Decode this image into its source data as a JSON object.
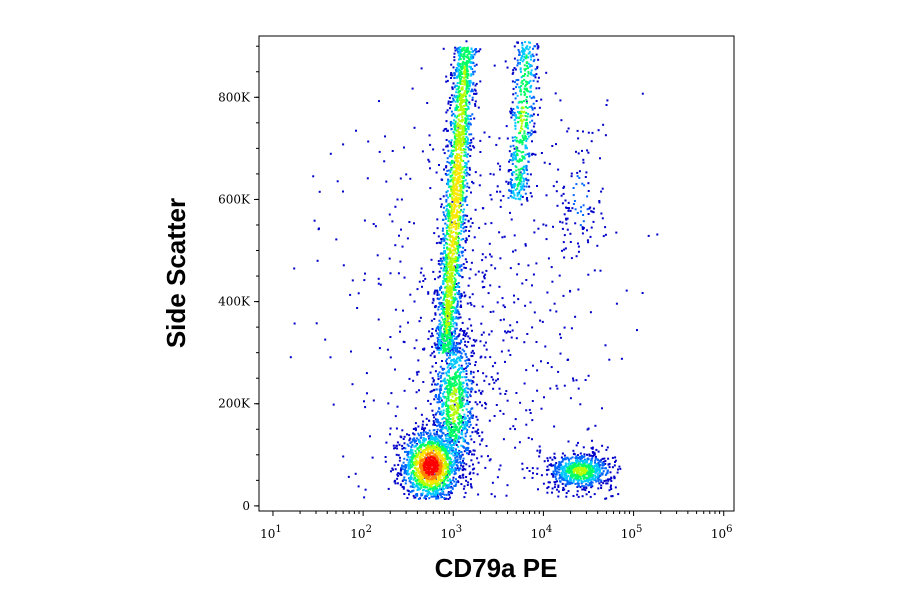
{
  "chart_data": {
    "type": "scatter",
    "xlabel": "CD79a PE",
    "ylabel": "Side Scatter",
    "x_scale": "log",
    "x_ticks": [
      {
        "value": 10,
        "base": "10",
        "exp": "1"
      },
      {
        "value": 100,
        "base": "10",
        "exp": "2"
      },
      {
        "value": 1000,
        "base": "10",
        "exp": "3"
      },
      {
        "value": 10000,
        "base": "10",
        "exp": "4"
      },
      {
        "value": 100000,
        "base": "10",
        "exp": "5"
      },
      {
        "value": 1000000,
        "base": "10",
        "exp": "6"
      }
    ],
    "y_ticks": [
      {
        "value": 0,
        "label": "0"
      },
      {
        "value": 200000,
        "label": "200K"
      },
      {
        "value": 400000,
        "label": "400K"
      },
      {
        "value": 600000,
        "label": "600K"
      },
      {
        "value": 800000,
        "label": "800K"
      }
    ],
    "xlim": [
      7,
      1300000
    ],
    "ylim": [
      -10000,
      920000
    ],
    "grid": false,
    "colormap": [
      "#0000c8",
      "#0064ff",
      "#00c8ff",
      "#00ff64",
      "#b4ff00",
      "#ffe600",
      "#ff8200",
      "#ff0000"
    ],
    "populations": [
      {
        "x_center": 550,
        "y_center": 80000,
        "x_spread_decades": 0.16,
        "y_spread": 35000,
        "count": 1400,
        "density": 1.0
      },
      {
        "x_center": 1000,
        "y_center": 200000,
        "x_spread_decades": 0.12,
        "y_spread": 80000,
        "count": 900,
        "density": 0.55
      },
      {
        "x_center": 900,
        "y_start": 300000,
        "y_end": 900000,
        "x_start": 800,
        "x_end": 1350,
        "x_spread_decades": 0.07,
        "count": 1900,
        "density": 0.6
      },
      {
        "x_center": 5500,
        "y_start": 600000,
        "y_end": 910000,
        "x_start": 5000,
        "x_end": 6500,
        "x_spread_decades": 0.07,
        "count": 500,
        "density": 0.45
      },
      {
        "x_center": 25000,
        "y_center": 70000,
        "x_spread_decades": 0.18,
        "y_spread": 18000,
        "count": 700,
        "density": 0.55
      },
      {
        "x_center": 25000,
        "y_center": 600000,
        "x_spread_decades": 0.15,
        "y_spread": 90000,
        "count": 120,
        "density": 0.15
      },
      {
        "x_center": 1500,
        "y_center": 350000,
        "x_spread_decades": 0.7,
        "y_spread": 250000,
        "count": 700,
        "density": 0.1
      }
    ]
  }
}
